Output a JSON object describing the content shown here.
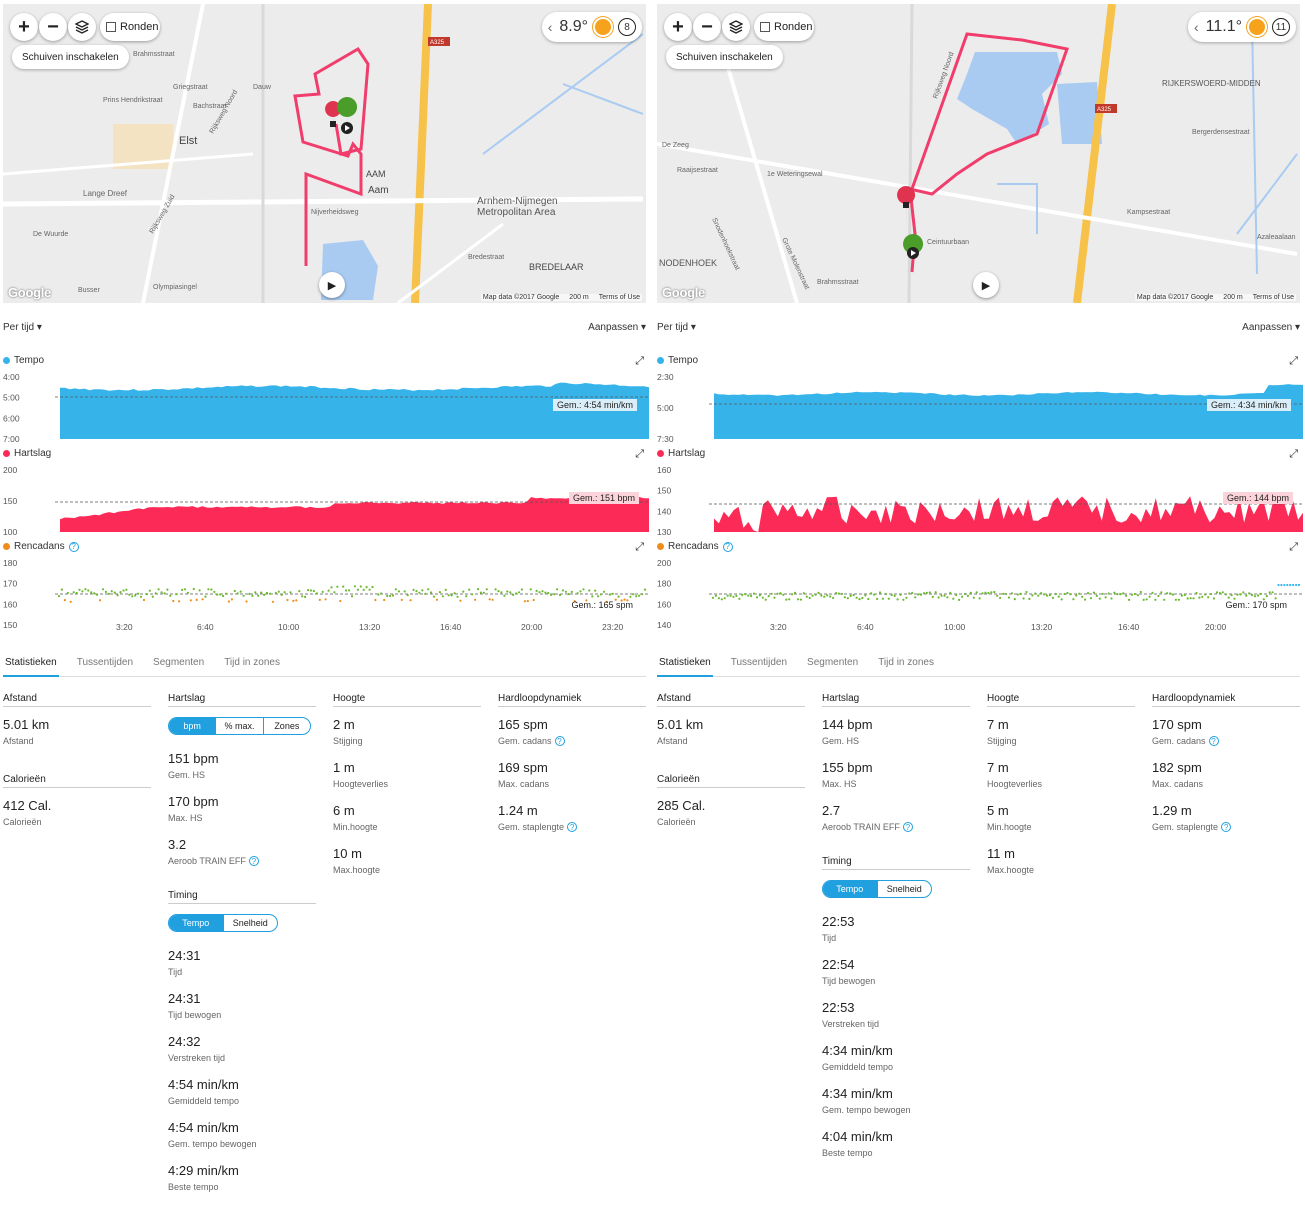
{
  "left": {
    "map": {
      "laps_label": "Ronden",
      "scroll_label": "Schuiven inschakelen",
      "temperature": "8.9°",
      "wind": "8",
      "place_labels": [
        "Elst",
        "AAM",
        "Aam",
        "Arnhem-Nijmegen",
        "Metropolitan Area",
        "BREDELAAR",
        "A325",
        "Lange Dreef",
        "Nijverheidsweg",
        "Olympiasingel",
        "Brahmsstraat",
        "Prins Hendrikstraat",
        "Rijksweg Noord",
        "Rijksweg Zuid",
        "Bachstraat",
        "De Wuurde",
        "Busser",
        "Bredestraat",
        "Griegstraat",
        "Dauw"
      ],
      "attribution": [
        "Map data ©2017 Google",
        "200 m",
        "Terms of Use"
      ],
      "google": "Google"
    },
    "header": {
      "per_tijd": "Per tijd ▾",
      "aanpassen": "Aanpassen ▾"
    },
    "charts": {
      "tempo": {
        "title": "Tempo",
        "avg": "Gem.: 4:54 min/km",
        "y_ticks": [
          "4:00",
          "5:00",
          "6:00",
          "7:00"
        ],
        "x_ticks": [
          "3:20",
          "6:40",
          "10:00",
          "13:20",
          "16:40",
          "20:00",
          "23:20"
        ]
      },
      "hartslag": {
        "title": "Hartslag",
        "avg": "Gem.: 151 bpm",
        "y_ticks": [
          "200",
          "150",
          "100"
        ],
        "x_ticks": [
          "3:20",
          "6:40",
          "10:00",
          "13:20",
          "16:40",
          "20:00",
          "23:20"
        ]
      },
      "cadans": {
        "title": "Rencadans",
        "avg": "Gem.: 165 spm",
        "y_ticks": [
          "180",
          "170",
          "160",
          "150"
        ],
        "x_ticks": [
          "3:20",
          "6:40",
          "10:00",
          "13:20",
          "16:40",
          "20:00",
          "23:20"
        ]
      }
    },
    "tabs": [
      "Statistieken",
      "Tussentijden",
      "Segmenten",
      "Tijd in zones"
    ],
    "stats": {
      "afstand": {
        "header": "Afstand",
        "items": [
          {
            "v": "5.01 km",
            "l": "Afstand"
          }
        ]
      },
      "calorieen": {
        "header": "Calorieën",
        "items": [
          {
            "v": "412 Cal.",
            "l": "Calorieën"
          }
        ]
      },
      "hartslag": {
        "header": "Hartslag",
        "seg": [
          "bpm",
          "% max.",
          "Zones"
        ],
        "items": [
          {
            "v": "151 bpm",
            "l": "Gem. HS"
          },
          {
            "v": "170 bpm",
            "l": "Max. HS"
          },
          {
            "v": "3.2",
            "l": "Aeroob TRAIN EFF"
          }
        ]
      },
      "timing": {
        "header": "Timing",
        "seg": [
          "Tempo",
          "Snelheid"
        ],
        "items": [
          {
            "v": "24:31",
            "l": "Tijd"
          },
          {
            "v": "24:31",
            "l": "Tijd bewogen"
          },
          {
            "v": "24:32",
            "l": "Verstreken tijd"
          },
          {
            "v": "4:54 min/km",
            "l": "Gemiddeld tempo"
          },
          {
            "v": "4:54 min/km",
            "l": "Gem. tempo bewogen"
          },
          {
            "v": "4:29 min/km",
            "l": "Beste tempo"
          }
        ]
      },
      "hoogte": {
        "header": "Hoogte",
        "items": [
          {
            "v": "2 m",
            "l": "Stijging"
          },
          {
            "v": "1 m",
            "l": "Hoogteverlies"
          },
          {
            "v": "6 m",
            "l": "Min.hoogte"
          },
          {
            "v": "10 m",
            "l": "Max.hoogte"
          }
        ]
      },
      "dynamiek": {
        "header": "Hardloopdynamiek",
        "items": [
          {
            "v": "165 spm",
            "l": "Gem. cadans"
          },
          {
            "v": "169 spm",
            "l": "Max. cadans"
          },
          {
            "v": "1.24 m",
            "l": "Gem. staplengte"
          }
        ]
      }
    }
  },
  "right": {
    "map": {
      "laps_label": "Ronden",
      "scroll_label": "Schuiven inschakelen",
      "temperature": "11.1°",
      "wind": "11",
      "place_labels": [
        "RIJKERSWOERD-MIDDEN",
        "NODENHOEK",
        "A325",
        "Ceintuurbaan",
        "De Zeeg",
        "Brahmsstraat",
        "Bergerdensestraat",
        "Kampsestraat",
        "Azaleaalaan",
        "1e Weteringsewal",
        "Raaijsestraat",
        "Grote Molenstraat",
        "Snodenhoekstraat",
        "Rijksweg Noord"
      ],
      "attribution": [
        "Map data ©2017 Google",
        "200 m",
        "Terms of Use"
      ],
      "google": "Google"
    },
    "header": {
      "per_tijd": "Per tijd ▾",
      "aanpassen": "Aanpassen ▾"
    },
    "charts": {
      "tempo": {
        "title": "Tempo",
        "avg": "Gem.: 4:34 min/km",
        "y_ticks": [
          "2:30",
          "5:00",
          "7:30"
        ],
        "x_ticks": [
          "3:20",
          "6:40",
          "10:00",
          "13:20",
          "16:40",
          "20:00"
        ]
      },
      "hartslag": {
        "title": "Hartslag",
        "avg": "Gem.: 144 bpm",
        "y_ticks": [
          "160",
          "150",
          "140",
          "130"
        ],
        "x_ticks": [
          "3:20",
          "6:40",
          "10:00",
          "13:20",
          "16:40",
          "20:00"
        ]
      },
      "cadans": {
        "title": "Rencadans",
        "avg": "Gem.: 170 spm",
        "y_ticks": [
          "200",
          "180",
          "160",
          "140"
        ],
        "x_ticks": [
          "3:20",
          "6:40",
          "10:00",
          "13:20",
          "16:40",
          "20:00"
        ]
      }
    },
    "tabs": [
      "Statistieken",
      "Tussentijden",
      "Segmenten",
      "Tijd in zones"
    ],
    "stats": {
      "afstand": {
        "header": "Afstand",
        "items": [
          {
            "v": "5.01 km",
            "l": "Afstand"
          }
        ]
      },
      "calorieen": {
        "header": "Calorieën",
        "items": [
          {
            "v": "285 Cal.",
            "l": "Calorieën"
          }
        ]
      },
      "hartslag": {
        "header": "Hartslag",
        "items": [
          {
            "v": "144 bpm",
            "l": "Gem. HS"
          },
          {
            "v": "155 bpm",
            "l": "Max. HS"
          },
          {
            "v": "2.7",
            "l": "Aeroob TRAIN EFF"
          }
        ]
      },
      "timing": {
        "header": "Timing",
        "seg": [
          "Tempo",
          "Snelheid"
        ],
        "items": [
          {
            "v": "22:53",
            "l": "Tijd"
          },
          {
            "v": "22:54",
            "l": "Tijd bewogen"
          },
          {
            "v": "22:53",
            "l": "Verstreken tijd"
          },
          {
            "v": "4:34 min/km",
            "l": "Gemiddeld tempo"
          },
          {
            "v": "4:34 min/km",
            "l": "Gem. tempo bewogen"
          },
          {
            "v": "4:04 min/km",
            "l": "Beste tempo"
          }
        ]
      },
      "hoogte": {
        "header": "Hoogte",
        "items": [
          {
            "v": "7 m",
            "l": "Stijging"
          },
          {
            "v": "7 m",
            "l": "Hoogteverlies"
          },
          {
            "v": "5 m",
            "l": "Min.hoogte"
          },
          {
            "v": "11 m",
            "l": "Max.hoogte"
          }
        ]
      },
      "dynamiek": {
        "header": "Hardloopdynamiek",
        "items": [
          {
            "v": "170 spm",
            "l": "Gem. cadans"
          },
          {
            "v": "182 spm",
            "l": "Max. cadans"
          },
          {
            "v": "1.29 m",
            "l": "Gem. staplengte"
          }
        ]
      }
    }
  },
  "colors": {
    "tempo": "#36b4ea",
    "hartslag": "#fc2a56",
    "cadans_green": "#6aba2d",
    "cadans_orange": "#f08c1a",
    "accent": "#21a0e0",
    "route": "#f03d6c"
  }
}
